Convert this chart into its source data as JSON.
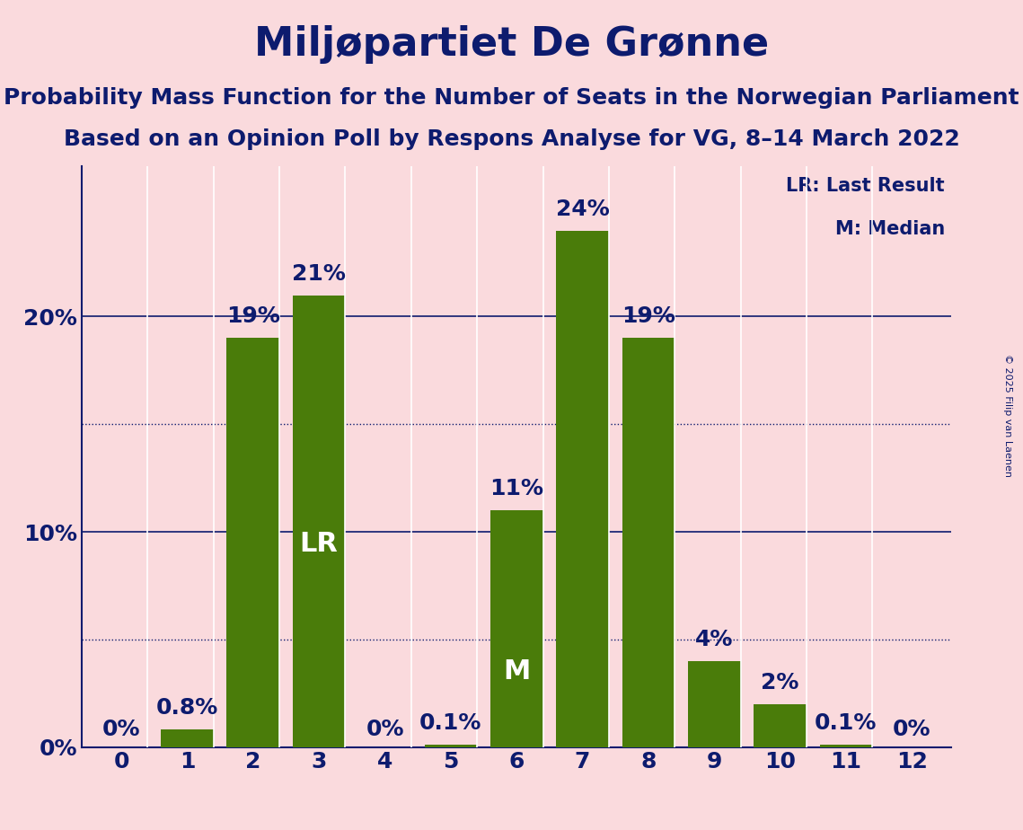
{
  "title": "Miljøpartiet De Grønne",
  "subtitle1": "Probability Mass Function for the Number of Seats in the Norwegian Parliament",
  "subtitle2": "Based on an Opinion Poll by Respons Analyse for VG, 8–14 March 2022",
  "copyright": "© 2025 Filip van Laenen",
  "categories": [
    0,
    1,
    2,
    3,
    4,
    5,
    6,
    7,
    8,
    9,
    10,
    11,
    12
  ],
  "values": [
    0.0,
    0.8,
    19.0,
    21.0,
    0.0,
    0.1,
    11.0,
    24.0,
    19.0,
    4.0,
    2.0,
    0.1,
    0.0
  ],
  "labels": [
    "0%",
    "0.8%",
    "19%",
    "21%",
    "0%",
    "0.1%",
    "11%",
    "24%",
    "19%",
    "4%",
    "2%",
    "0.1%",
    "0%"
  ],
  "bar_color": "#4a7c0a",
  "lr_bar": 3,
  "m_bar": 6,
  "background_color": "#fadadd",
  "text_color": "#0d1b6e",
  "title_fontsize": 32,
  "subtitle_fontsize": 18,
  "label_fontsize": 18,
  "axis_label_fontsize": 18,
  "yticks": [
    0,
    10,
    20
  ],
  "ytick_labels": [
    "0%",
    "10%",
    "20%"
  ],
  "ylim": [
    0,
    27
  ],
  "dotted_lines": [
    5,
    15
  ],
  "solid_lines": [
    10,
    20
  ],
  "legend_lr": "LR: Last Result",
  "legend_m": "M: Median",
  "lr_label_text": "LR",
  "m_label_text": "M"
}
